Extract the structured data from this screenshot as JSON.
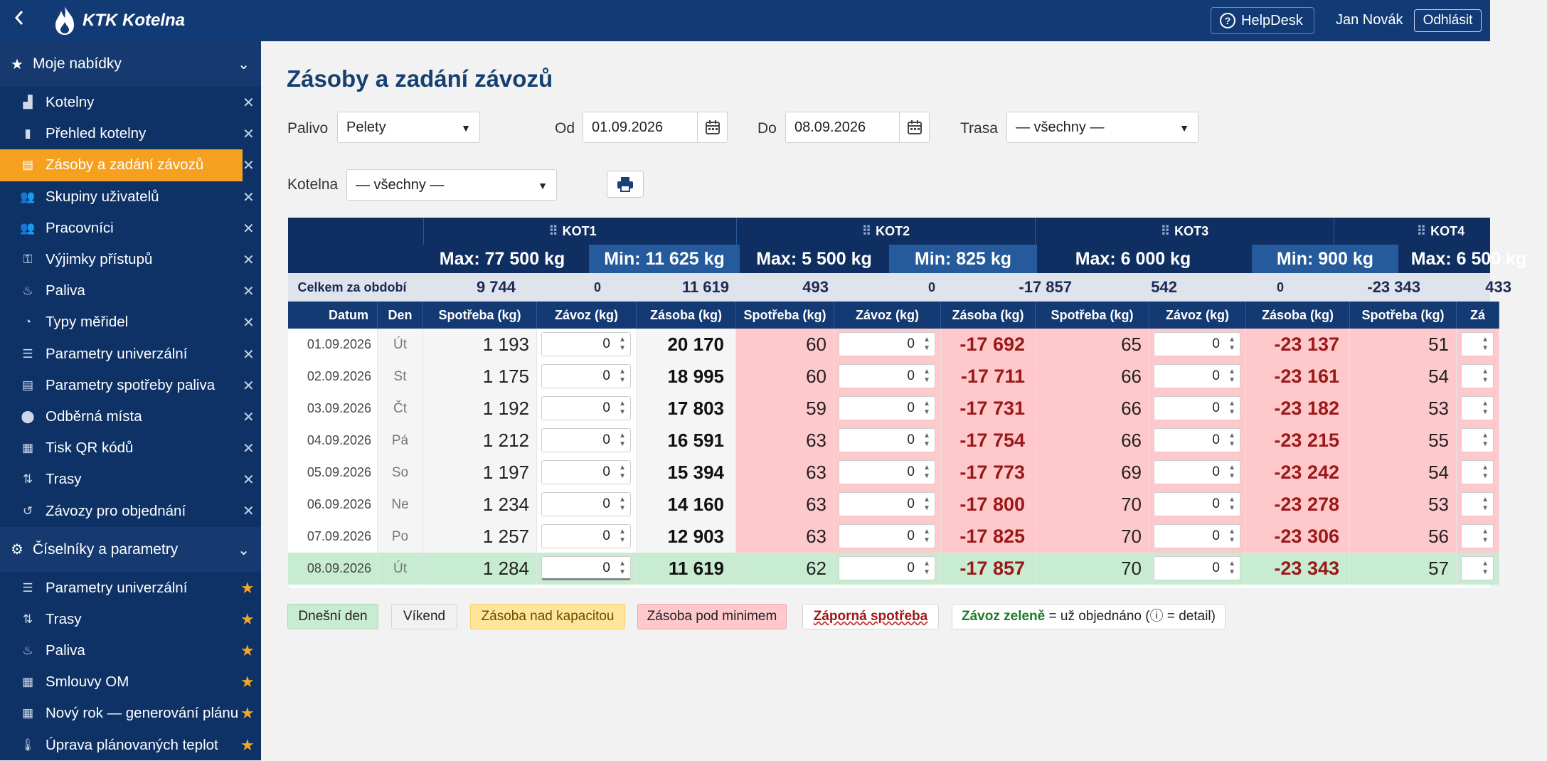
{
  "app": {
    "title": "KTK Kotelna",
    "helpdesk": "HelpDesk",
    "user": "Jan Novák",
    "logout": "Odhlásit"
  },
  "sidebar": {
    "section1": "Moje nabídky",
    "items1": [
      {
        "label": "Kotelny",
        "icon": "factory-icon"
      },
      {
        "label": "Přehled kotelny",
        "icon": "chart-icon"
      },
      {
        "label": "Zásoby a zadání závozů",
        "icon": "archive-icon"
      },
      {
        "label": "Skupiny uživatelů",
        "icon": "users-icon"
      },
      {
        "label": "Pracovníci",
        "icon": "workers-icon"
      },
      {
        "label": "Výjimky přístupů",
        "icon": "user-key-icon"
      },
      {
        "label": "Paliva",
        "icon": "flame-icon"
      },
      {
        "label": "Typy měřidel",
        "icon": "gauge-icon"
      },
      {
        "label": "Parametry univerzální",
        "icon": "sliders-icon"
      },
      {
        "label": "Parametry spotřeby paliva",
        "icon": "document-icon"
      },
      {
        "label": "Odběrná místa",
        "icon": "pin-icon"
      },
      {
        "label": "Tisk QR kódů",
        "icon": "qr-icon"
      },
      {
        "label": "Trasy",
        "icon": "route-icon"
      },
      {
        "label": "Závozy pro objednání",
        "icon": "history-icon"
      }
    ],
    "section2": "Číselníky a parametry",
    "items2": [
      {
        "label": "Parametry univerzální",
        "icon": "sliders-icon"
      },
      {
        "label": "Trasy",
        "icon": "route-icon"
      },
      {
        "label": "Paliva",
        "icon": "flame-icon"
      },
      {
        "label": "Smlouvy OM",
        "icon": "calendar-icon"
      },
      {
        "label": "Nový rok — generování plánu",
        "icon": "calendar-icon"
      },
      {
        "label": "Úprava plánovaných teplot",
        "icon": "thermometer-icon"
      }
    ]
  },
  "page": {
    "title": "Zásoby a zadání závozů"
  },
  "filters": {
    "palivo_label": "Palivo",
    "palivo_value": "Pelety",
    "od_label": "Od",
    "od_value": "01.09.2026",
    "do_label": "Do",
    "do_value": "08.09.2026",
    "trasa_label": "Trasa",
    "trasa_value": "— všechny —",
    "kotelna_label": "Kotelna",
    "kotelna_value": "— všechny —"
  },
  "grid": {
    "kotelny": [
      {
        "name": "KOT1",
        "max": "Max: 77 500 kg",
        "min": "Min: 11 625 kg"
      },
      {
        "name": "KOT2",
        "max": "Max: 5 500 kg",
        "min": "Min: 825 kg"
      },
      {
        "name": "KOT3",
        "max": "Max: 6 000 kg",
        "min": "Min: 900 kg"
      },
      {
        "name": "KOT4",
        "max": "Max: 6 500 kg",
        "min": ""
      }
    ],
    "totals_label": "Celkem za období",
    "totals": [
      "9 744",
      "0",
      "11 619",
      "493",
      "0",
      "-17 857",
      "542",
      "0",
      "-23 343",
      "433"
    ],
    "columns": [
      "Datum",
      "Den",
      "Spotřeba (kg)",
      "Závoz (kg)",
      "Zásoba (kg)",
      "Spotřeba (kg)",
      "Závoz (kg)",
      "Zásoba (kg)",
      "Spotřeba (kg)",
      "Závoz (kg)",
      "Zásoba (kg)",
      "Spotřeba (kg)",
      "Zá"
    ],
    "rows": [
      {
        "date": "01.09.2026",
        "day": "Út",
        "k1s": "1 193",
        "k1z": "0",
        "k1q": "20 170",
        "k2s": "60",
        "k2z": "0",
        "k2q": "-17 692",
        "k3s": "65",
        "k3z": "0",
        "k3q": "-23 137",
        "k4s": "51"
      },
      {
        "date": "02.09.2026",
        "day": "St",
        "k1s": "1 175",
        "k1z": "0",
        "k1q": "18 995",
        "k2s": "60",
        "k2z": "0",
        "k2q": "-17 711",
        "k3s": "66",
        "k3z": "0",
        "k3q": "-23 161",
        "k4s": "54"
      },
      {
        "date": "03.09.2026",
        "day": "Čt",
        "k1s": "1 192",
        "k1z": "0",
        "k1q": "17 803",
        "k2s": "59",
        "k2z": "0",
        "k2q": "-17 731",
        "k3s": "66",
        "k3z": "0",
        "k3q": "-23 182",
        "k4s": "53"
      },
      {
        "date": "04.09.2026",
        "day": "Pá",
        "k1s": "1 212",
        "k1z": "0",
        "k1q": "16 591",
        "k2s": "63",
        "k2z": "0",
        "k2q": "-17 754",
        "k3s": "66",
        "k3z": "0",
        "k3q": "-23 215",
        "k4s": "55"
      },
      {
        "date": "05.09.2026",
        "day": "So",
        "k1s": "1 197",
        "k1z": "0",
        "k1q": "15 394",
        "k2s": "63",
        "k2z": "0",
        "k2q": "-17 773",
        "k3s": "69",
        "k3z": "0",
        "k3q": "-23 242",
        "k4s": "54"
      },
      {
        "date": "06.09.2026",
        "day": "Ne",
        "k1s": "1 234",
        "k1z": "0",
        "k1q": "14 160",
        "k2s": "63",
        "k2z": "0",
        "k2q": "-17 800",
        "k3s": "70",
        "k3z": "0",
        "k3q": "-23 278",
        "k4s": "53"
      },
      {
        "date": "07.09.2026",
        "day": "Po",
        "k1s": "1 257",
        "k1z": "0",
        "k1q": "12 903",
        "k2s": "63",
        "k2z": "0",
        "k2q": "-17 825",
        "k3s": "70",
        "k3z": "0",
        "k3q": "-23 306",
        "k4s": "56"
      },
      {
        "date": "08.09.2026",
        "day": "Út",
        "k1s": "1 284",
        "k1z": "0",
        "k1q": "11 619",
        "k2s": "62",
        "k2z": "0",
        "k2q": "-17 857",
        "k3s": "70",
        "k3z": "0",
        "k3q": "-23 343",
        "k4s": "57"
      }
    ]
  },
  "legend": {
    "today": "Dnešní den",
    "weekend": "Víkend",
    "over": "Zásoba nad kapacitou",
    "under": "Zásoba pod minimem",
    "negative": "Záporná spotřeba",
    "green_bold": "Závoz zeleně",
    "green_rest": "= už objednáno (ⓘ = detail)"
  },
  "colors": {
    "navy": "#123a75",
    "accent": "#f6a020",
    "neg_bg": "#ffc9cc",
    "today_bg": "#c8ecd1",
    "neg_text": "#9b1818"
  }
}
